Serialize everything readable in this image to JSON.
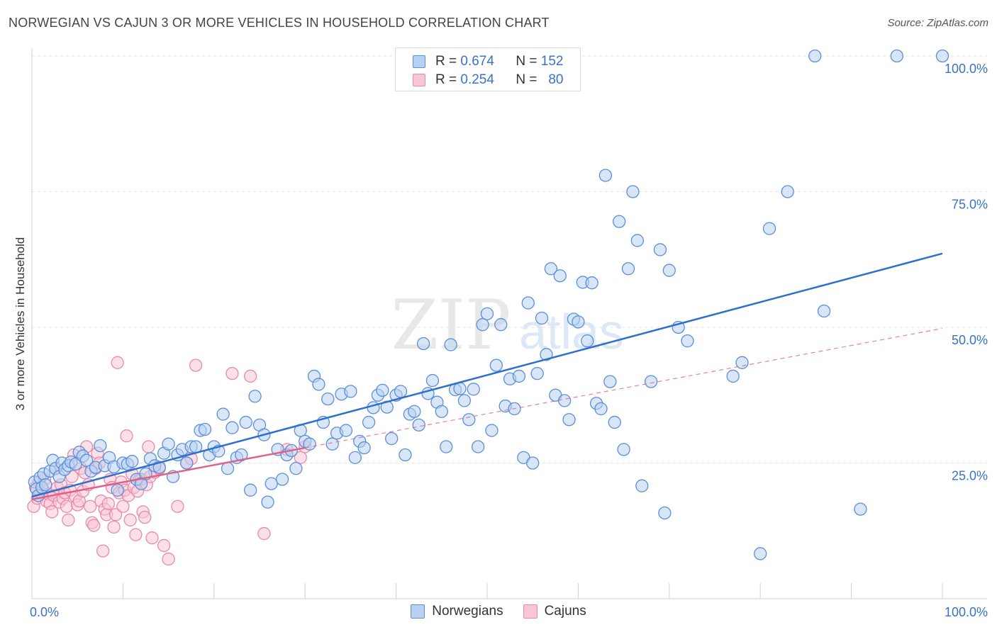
{
  "title": "NORWEGIAN VS CAJUN 3 OR MORE VEHICLES IN HOUSEHOLD CORRELATION CHART",
  "source": "Source: ZipAtlas.com",
  "watermark": {
    "zip": "ZIP",
    "atlas": "atlas"
  },
  "legend": {
    "r_label": "R =",
    "n_label": "N =",
    "norwegian": {
      "r": "0.674",
      "n": "152"
    },
    "cajun": {
      "r": "0.254",
      "n": "80"
    }
  },
  "colors": {
    "norwegian_fill": "#b8d1f3",
    "norwegian_stroke": "#5b8fd8",
    "norwegian_line": "#2f6fce",
    "cajun_fill": "#f8c6d6",
    "cajun_stroke": "#e88aa8",
    "cajun_line": "#e0608a",
    "tick_text": "#3a72c8",
    "grid": "#e3e3e3"
  },
  "chart_data": {
    "type": "scatter",
    "xlabel": "",
    "ylabel": "3 or more Vehicles in Household",
    "xlim": [
      0,
      100
    ],
    "ylim": [
      0,
      100
    ],
    "x_tick_labels": [
      "0.0%",
      "100.0%"
    ],
    "y_ticks": [
      {
        "value": 25,
        "label": "25.0%"
      },
      {
        "value": 50,
        "label": "50.0%"
      },
      {
        "value": 75,
        "label": "75.0%"
      },
      {
        "value": 100,
        "label": "100.0%"
      }
    ],
    "series": [
      {
        "name": "Norwegians",
        "trend": {
          "x0": 0,
          "y0": 18.8,
          "x1": 100,
          "y1": 63.6
        },
        "points": [
          [
            0.3,
            21.5
          ],
          [
            0.5,
            20.2
          ],
          [
            0.7,
            19.0
          ],
          [
            0.9,
            22.3
          ],
          [
            1.1,
            20.5
          ],
          [
            1.3,
            23.0
          ],
          [
            1.5,
            21.0
          ],
          [
            2.0,
            23.5
          ],
          [
            2.3,
            25.5
          ],
          [
            2.6,
            24.0
          ],
          [
            3.0,
            22.5
          ],
          [
            3.3,
            25.0
          ],
          [
            3.6,
            23.8
          ],
          [
            4.0,
            24.5
          ],
          [
            4.3,
            25.2
          ],
          [
            4.8,
            24.8
          ],
          [
            5.2,
            27.0
          ],
          [
            5.6,
            26.3
          ],
          [
            6.0,
            25.5
          ],
          [
            6.5,
            23.5
          ],
          [
            7.0,
            24.2
          ],
          [
            7.5,
            28.2
          ],
          [
            8.0,
            24.5
          ],
          [
            8.5,
            26.0
          ],
          [
            9.0,
            24.3
          ],
          [
            9.4,
            20.0
          ],
          [
            10.0,
            25.0
          ],
          [
            10.5,
            24.8
          ],
          [
            11.0,
            25.3
          ],
          [
            11.5,
            22.0
          ],
          [
            12.0,
            21.2
          ],
          [
            12.5,
            23.0
          ],
          [
            13.0,
            25.8
          ],
          [
            13.5,
            24.5
          ],
          [
            14.0,
            24.2
          ],
          [
            14.5,
            26.8
          ],
          [
            15.0,
            28.5
          ],
          [
            15.5,
            22.5
          ],
          [
            16.0,
            26.5
          ],
          [
            16.5,
            27.5
          ],
          [
            17.0,
            25.0
          ],
          [
            17.5,
            28.0
          ],
          [
            18.0,
            28.0
          ],
          [
            18.5,
            31.0
          ],
          [
            19.0,
            31.2
          ],
          [
            19.5,
            26.5
          ],
          [
            20.0,
            28.0
          ],
          [
            20.5,
            27.2
          ],
          [
            21.0,
            34.0
          ],
          [
            21.5,
            24.0
          ],
          [
            22.0,
            31.5
          ],
          [
            22.5,
            26.0
          ],
          [
            23.0,
            26.5
          ],
          [
            23.5,
            32.5
          ],
          [
            24.0,
            20.0
          ],
          [
            24.5,
            37.3
          ],
          [
            25.0,
            32.0
          ],
          [
            25.5,
            30.2
          ],
          [
            25.9,
            17.8
          ],
          [
            26.3,
            21.2
          ],
          [
            27.0,
            27.5
          ],
          [
            27.5,
            22.0
          ],
          [
            28.0,
            26.5
          ],
          [
            28.5,
            27.3
          ],
          [
            29.0,
            24.0
          ],
          [
            29.5,
            31.0
          ],
          [
            30.0,
            29.0
          ],
          [
            30.5,
            28.5
          ],
          [
            31.0,
            41.0
          ],
          [
            31.5,
            39.5
          ],
          [
            32.0,
            32.5
          ],
          [
            32.5,
            36.8
          ],
          [
            33.0,
            28.5
          ],
          [
            33.5,
            30.5
          ],
          [
            34.0,
            37.7
          ],
          [
            34.5,
            31.0
          ],
          [
            35.0,
            38.2
          ],
          [
            35.5,
            26.0
          ],
          [
            36.0,
            29.0
          ],
          [
            36.5,
            27.8
          ],
          [
            37.0,
            32.5
          ],
          [
            37.5,
            35.2
          ],
          [
            38.0,
            37.5
          ],
          [
            38.5,
            38.4
          ],
          [
            39.0,
            35.3
          ],
          [
            39.5,
            29.5
          ],
          [
            40.0,
            37.5
          ],
          [
            40.5,
            38.2
          ],
          [
            41.0,
            26.5
          ],
          [
            41.5,
            34.0
          ],
          [
            42.0,
            34.5
          ],
          [
            42.5,
            32.0
          ],
          [
            43.0,
            47.0
          ],
          [
            43.5,
            37.8
          ],
          [
            44.0,
            40.2
          ],
          [
            44.5,
            36.2
          ],
          [
            45.0,
            34.5
          ],
          [
            45.5,
            28.0
          ],
          [
            46.0,
            46.8
          ],
          [
            46.5,
            38.5
          ],
          [
            47.0,
            38.7
          ],
          [
            47.5,
            36.5
          ],
          [
            48.0,
            33.0
          ],
          [
            48.5,
            38.6
          ],
          [
            49.0,
            28.0
          ],
          [
            49.5,
            50.5
          ],
          [
            50.0,
            52.5
          ],
          [
            50.5,
            31.0
          ],
          [
            51.0,
            43.0
          ],
          [
            51.5,
            50.5
          ],
          [
            52.0,
            35.5
          ],
          [
            52.5,
            40.5
          ],
          [
            53.0,
            35.0
          ],
          [
            53.5,
            41.0
          ],
          [
            54.0,
            26.0
          ],
          [
            54.5,
            54.5
          ],
          [
            55.0,
            25.0
          ],
          [
            55.5,
            41.5
          ],
          [
            56.0,
            51.7
          ],
          [
            56.5,
            45.0
          ],
          [
            57.0,
            60.8
          ],
          [
            57.5,
            37.5
          ],
          [
            58.0,
            59.5
          ],
          [
            58.5,
            36.5
          ],
          [
            59.0,
            33.0
          ],
          [
            59.5,
            51.5
          ],
          [
            60.0,
            51.0
          ],
          [
            60.5,
            58.3
          ],
          [
            61.0,
            47.5
          ],
          [
            61.5,
            58.2
          ],
          [
            62.0,
            36.0
          ],
          [
            62.5,
            35.0
          ],
          [
            63.0,
            78.0
          ],
          [
            63.5,
            40.0
          ],
          [
            64.0,
            32.5
          ],
          [
            64.5,
            69.5
          ],
          [
            65.0,
            27.5
          ],
          [
            65.5,
            60.8
          ],
          [
            66.0,
            75.0
          ],
          [
            66.5,
            66.0
          ],
          [
            67.0,
            20.8
          ],
          [
            68.0,
            40.0
          ],
          [
            69.0,
            64.3
          ],
          [
            69.5,
            15.8
          ],
          [
            70.0,
            60.5
          ],
          [
            71.0,
            50.0
          ],
          [
            72.0,
            47.5
          ],
          [
            77.0,
            41.0
          ],
          [
            78.0,
            43.5
          ],
          [
            80.0,
            8.3
          ],
          [
            81.0,
            68.2
          ],
          [
            83.0,
            75.0
          ],
          [
            86.0,
            100.0
          ],
          [
            87.0,
            53.0
          ],
          [
            91.0,
            16.5
          ],
          [
            95.0,
            100.0
          ],
          [
            100.0,
            100.0
          ]
        ]
      },
      {
        "name": "Cajuns",
        "trend": {
          "x0": 0,
          "y0": 18.3,
          "x1": 30,
          "y1": 27.8
        },
        "trend_dashed": {
          "x0": 30,
          "y0": 27.8,
          "x1": 100,
          "y1": 49.8
        },
        "points": [
          [
            0.2,
            17.0
          ],
          [
            0.4,
            20.5
          ],
          [
            0.6,
            18.5
          ],
          [
            0.8,
            21.5
          ],
          [
            1.0,
            19.5
          ],
          [
            1.2,
            20.2
          ],
          [
            1.4,
            22.0
          ],
          [
            1.6,
            18.0
          ],
          [
            1.8,
            19.3
          ],
          [
            2.0,
            17.5
          ],
          [
            2.2,
            16.0
          ],
          [
            2.4,
            19.0
          ],
          [
            2.6,
            24.0
          ],
          [
            2.8,
            20.5
          ],
          [
            3.0,
            17.8
          ],
          [
            3.2,
            21.0
          ],
          [
            3.4,
            18.5
          ],
          [
            3.6,
            19.5
          ],
          [
            3.8,
            17.0
          ],
          [
            4.0,
            14.5
          ],
          [
            4.2,
            20.0
          ],
          [
            4.4,
            22.5
          ],
          [
            4.6,
            26.5
          ],
          [
            4.8,
            18.8
          ],
          [
            5.0,
            17.3
          ],
          [
            5.2,
            18.0
          ],
          [
            5.4,
            24.0
          ],
          [
            5.6,
            19.8
          ],
          [
            5.8,
            23.2
          ],
          [
            6.0,
            28.0
          ],
          [
            6.2,
            21.0
          ],
          [
            6.4,
            17.0
          ],
          [
            6.6,
            14.0
          ],
          [
            6.8,
            13.5
          ],
          [
            7.0,
            24.0
          ],
          [
            7.2,
            26.8
          ],
          [
            7.4,
            25.0
          ],
          [
            7.6,
            18.0
          ],
          [
            7.8,
            8.8
          ],
          [
            8.0,
            16.5
          ],
          [
            8.2,
            15.5
          ],
          [
            8.4,
            17.5
          ],
          [
            8.6,
            22.0
          ],
          [
            8.8,
            20.5
          ],
          [
            9.0,
            13.2
          ],
          [
            9.2,
            15.5
          ],
          [
            9.4,
            43.5
          ],
          [
            9.6,
            19.5
          ],
          [
            9.8,
            21.5
          ],
          [
            10.0,
            17.0
          ],
          [
            10.2,
            20.0
          ],
          [
            10.4,
            30.0
          ],
          [
            10.6,
            19.0
          ],
          [
            10.8,
            14.5
          ],
          [
            11.0,
            23.0
          ],
          [
            11.2,
            20.5
          ],
          [
            11.4,
            11.8
          ],
          [
            11.6,
            19.8
          ],
          [
            11.8,
            22.0
          ],
          [
            12.0,
            22.0
          ],
          [
            12.2,
            16.0
          ],
          [
            12.4,
            15.0
          ],
          [
            12.6,
            21.0
          ],
          [
            12.8,
            28.0
          ],
          [
            13.0,
            22.5
          ],
          [
            13.2,
            11.2
          ],
          [
            13.5,
            23.3
          ],
          [
            14.0,
            24.0
          ],
          [
            14.5,
            9.8
          ],
          [
            15.0,
            7.3
          ],
          [
            16.0,
            17.0
          ],
          [
            17.0,
            25.0
          ],
          [
            17.5,
            25.8
          ],
          [
            18.0,
            43.0
          ],
          [
            22.0,
            41.5
          ],
          [
            24.0,
            41.0
          ],
          [
            25.5,
            12.0
          ],
          [
            28.0,
            27.5
          ],
          [
            29.5,
            26.0
          ],
          [
            30.0,
            28.0
          ]
        ]
      }
    ]
  }
}
